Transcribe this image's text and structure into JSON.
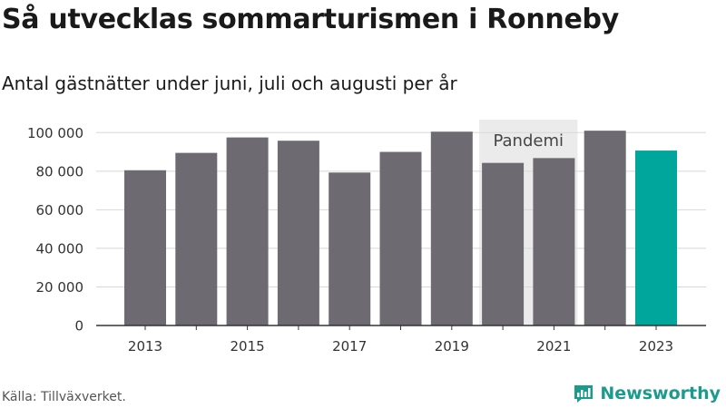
{
  "title": "Så utvecklas sommarturismen i Ronneby",
  "subtitle": "Antal gästnätter under juni, juli och augusti per år",
  "source": "Källa: Tillväxverket.",
  "brand": "Newsworthy",
  "chart_data": {
    "type": "bar",
    "categories": [
      "2013",
      "2014",
      "2015",
      "2016",
      "2017",
      "2018",
      "2019",
      "2020",
      "2021",
      "2022",
      "2023"
    ],
    "values": [
      80500,
      89500,
      97500,
      95800,
      79300,
      90000,
      100500,
      84300,
      86800,
      101000,
      90700
    ],
    "xtick_labels": [
      "2013",
      "",
      "2015",
      "",
      "2017",
      "",
      "2019",
      "",
      "2021",
      "",
      "2023"
    ],
    "yticks": [
      0,
      20000,
      40000,
      60000,
      80000,
      100000
    ],
    "ytick_labels": [
      "0",
      "20 000",
      "40 000",
      "60 000",
      "80 000",
      "100 000"
    ],
    "ylim": [
      0,
      110000
    ],
    "xlabel": "",
    "ylabel": "",
    "grid": true,
    "annotation": {
      "label": "Pandemi",
      "from_category": "2020",
      "to_category": "2021"
    },
    "colors": {
      "bar": "#6d6b71",
      "highlight": "#00a69c",
      "annotation_band": "#ebebeb",
      "grid": "#d8d8d8",
      "axis": "#333333"
    },
    "highlight_category": "2023"
  }
}
